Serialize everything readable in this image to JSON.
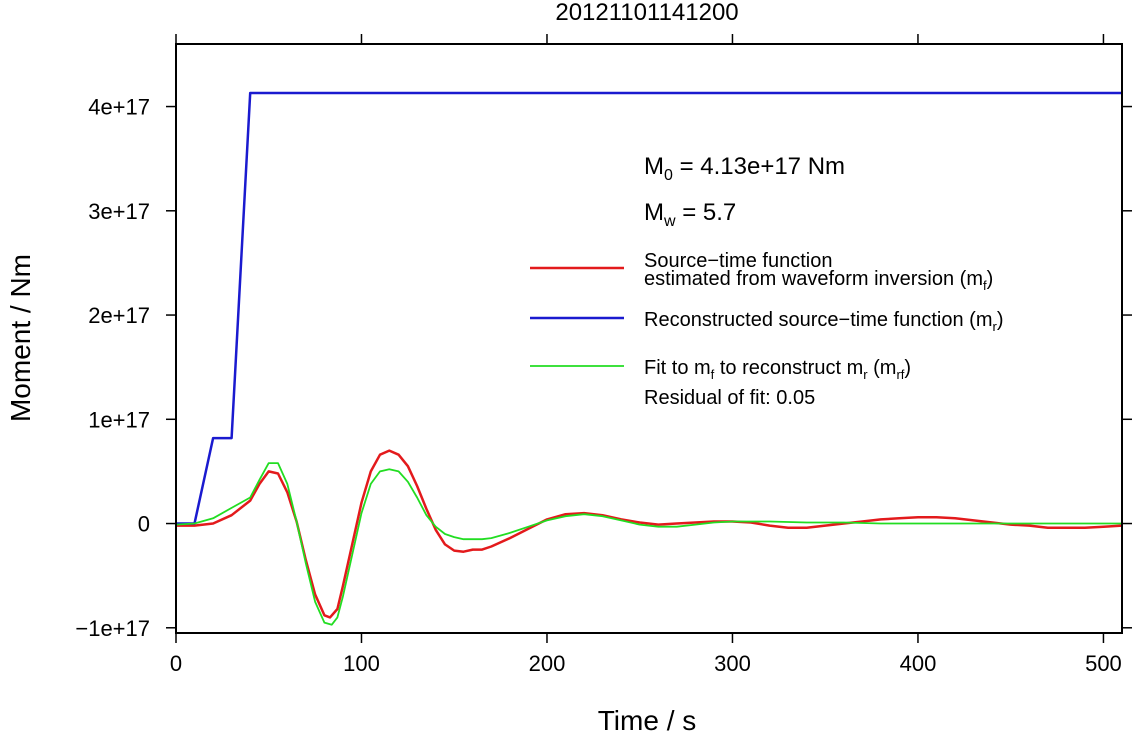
{
  "chart_data": {
    "type": "line",
    "title": "20121101141200",
    "xlabel": "Time / s",
    "ylabel": "Moment / Nm",
    "xlim": [
      0,
      510
    ],
    "ylim": [
      -1.05e+17,
      4.6e+17
    ],
    "x_ticks": [
      0,
      100,
      200,
      300,
      400,
      500
    ],
    "x_tick_labels": [
      "0",
      "100",
      "200",
      "300",
      "400",
      "500"
    ],
    "y_ticks": [
      -1e+17,
      0,
      1e+17,
      2e+17,
      3e+17,
      4e+17
    ],
    "y_tick_labels": [
      "−1e+17",
      "0",
      "1e+17",
      "2e+17",
      "3e+17",
      "4e+17"
    ],
    "grid": false,
    "legend_position": "right",
    "annotations": {
      "m0": {
        "main": "M",
        "sub": "0",
        "rest": " = 4.13e+17 Nm"
      },
      "mw": {
        "main": "M",
        "sub": "w",
        "rest": " = 5.7"
      },
      "residual": "Residual of fit: 0.05"
    },
    "legend": [
      {
        "line1": "Source−time function",
        "line2_pre": "estimated from waveform inversion (m",
        "line2_sub": "f",
        "line2_post": ")",
        "color": "#e31a1c",
        "width": 2.5
      },
      {
        "line1_pre": "Reconstructed source−time function (m",
        "line1_sub": "r",
        "line1_post": ")",
        "color": "#1a1acf",
        "width": 2.5
      },
      {
        "line1_pre": "Fit to m",
        "line1_sub": "f",
        "line1_mid": " to reconstruct m",
        "line1_sub2": "r",
        "line1_mid2": " (m",
        "line1_sub3": "rf",
        "line1_post": ")",
        "color": "#22dd22",
        "width": 1.8
      }
    ],
    "series": [
      {
        "key": "mf",
        "color": "#e31a1c",
        "width": 2.5,
        "x": [
          0,
          10,
          20,
          30,
          40,
          45,
          50,
          55,
          60,
          65,
          70,
          75,
          80,
          83,
          87,
          90,
          95,
          100,
          105,
          110,
          115,
          120,
          125,
          130,
          135,
          140,
          145,
          150,
          155,
          160,
          165,
          170,
          180,
          190,
          200,
          210,
          220,
          230,
          240,
          250,
          260,
          270,
          280,
          290,
          300,
          310,
          320,
          330,
          340,
          350,
          360,
          370,
          380,
          390,
          400,
          410,
          420,
          430,
          440,
          450,
          460,
          470,
          480,
          490,
          500,
          510
        ],
        "y": [
          -2000000000000000.0,
          -2000000000000000.0,
          0.0,
          8000000000000000.0,
          2.2e+16,
          3.8e+16,
          5e+16,
          4.8e+16,
          3e+16,
          2000000000000000.0,
          -3.5e+16,
          -6.8e+16,
          -8.8e+16,
          -9e+16,
          -8.2e+16,
          -6e+16,
          -2e+16,
          2e+16,
          5e+16,
          6.6e+16,
          7e+16,
          6.6e+16,
          5.5e+16,
          3.6e+16,
          1.4e+16,
          -6000000000000000.0,
          -2e+16,
          -2.6e+16,
          -2.7e+16,
          -2.5e+16,
          -2.5e+16,
          -2.2e+16,
          -1.4e+16,
          -5000000000000000.0,
          4000000000000000.0,
          9000000000000000.0,
          1e+16,
          8000000000000000.0,
          4000000000000000.0,
          1000000000000000.0,
          -1000000000000000.0,
          0.0,
          1000000000000000.0,
          2000000000000000.0,
          2000000000000000.0,
          1000000000000000.0,
          -2000000000000000.0,
          -4000000000000000.0,
          -4000000000000000.0,
          -2000000000000000.0,
          0.0,
          2000000000000000.0,
          4000000000000000.0,
          5000000000000000.0,
          6000000000000000.0,
          6000000000000000.0,
          5000000000000000.0,
          3000000000000000.0,
          1000000000000000.0,
          -1000000000000000.0,
          -2000000000000000.0,
          -4000000000000000.0,
          -4000000000000000.0,
          -4000000000000000.0,
          -3000000000000000.0,
          -2000000000000000.0
        ]
      },
      {
        "key": "mr",
        "color": "#1a1acf",
        "width": 2.5,
        "x": [
          0,
          10,
          20,
          30,
          40,
          510
        ],
        "y": [
          0,
          0,
          8.2e+16,
          8.2e+16,
          4.13e+17,
          4.13e+17
        ]
      },
      {
        "key": "mrf",
        "color": "#22dd22",
        "width": 1.8,
        "x": [
          0,
          10,
          20,
          30,
          40,
          45,
          50,
          55,
          60,
          65,
          70,
          75,
          80,
          84,
          87,
          90,
          95,
          100,
          105,
          110,
          115,
          120,
          125,
          130,
          135,
          140,
          145,
          150,
          155,
          160,
          165,
          170,
          180,
          190,
          200,
          210,
          220,
          230,
          240,
          250,
          260,
          270,
          280,
          290,
          300,
          320,
          340,
          360,
          380,
          400,
          420,
          440,
          460,
          480,
          500,
          510
        ],
        "y": [
          -1000000000000000.0,
          0.0,
          5000000000000000.0,
          1.5e+16,
          2.5e+16,
          4.2e+16,
          5.8e+16,
          5.8e+16,
          3.8e+16,
          2000000000000000.0,
          -3.8e+16,
          -7.5e+16,
          -9.5e+16,
          -9.7e+16,
          -9e+16,
          -7e+16,
          -3e+16,
          1e+16,
          3.8e+16,
          5e+16,
          5.2e+16,
          5e+16,
          4e+16,
          2.5e+16,
          8000000000000000.0,
          -3000000000000000.0,
          -1e+16,
          -1.3e+16,
          -1.5e+16,
          -1.5e+16,
          -1.5e+16,
          -1.4e+16,
          -9000000000000000.0,
          -3000000000000000.0,
          3000000000000000.0,
          7000000000000000.0,
          9000000000000000.0,
          7000000000000000.0,
          3000000000000000.0,
          -1000000000000000.0,
          -3000000000000000.0,
          -3000000000000000.0,
          -1000000000000000.0,
          1000000000000000.0,
          2000000000000000.0,
          2000000000000000.0,
          1000000000000000.0,
          1000000000000000.0,
          0.0,
          0.0,
          0.0,
          0.0,
          0.0,
          0.0,
          0.0,
          0.0
        ]
      }
    ]
  }
}
